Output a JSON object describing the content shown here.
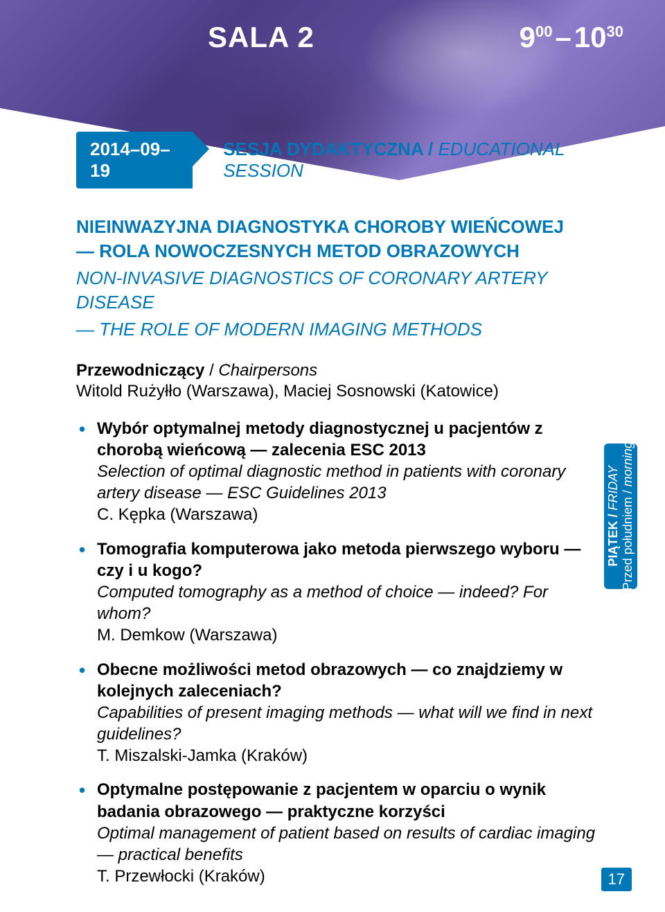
{
  "header": {
    "room": "SALA 2",
    "time_start_h": "9",
    "time_start_m": "00",
    "time_end_h": "10",
    "time_end_m": "30"
  },
  "date_badge": "2014–09–19",
  "session_type_pl": "SESJA DYDAKTYCZNA",
  "session_type_en": "EDUCATIONAL SESSION",
  "title_pl_line1": "NIEINWAZYJNA DIAGNOSTYKA CHOROBY WIEŃCOWEJ",
  "title_pl_line2": "— ROLA NOWOCZESNYCH METOD OBRAZOWYCH",
  "title_en_line1": "NON-INVASIVE DIAGNOSTICS OF CORONARY ARTERY DISEASE",
  "title_en_line2": "— THE ROLE OF MODERN IMAGING METHODS",
  "chair_label_pl": "Przewodniczący",
  "chair_label_en": "Chairpersons",
  "chair_names": "Witold Rużyłło (Warszawa), Maciej Sosnowski (Katowice)",
  "items": [
    {
      "pl": "Wybór optymalnej metody diagnostycznej u pacjentów z chorobą wieńcową — zalecenia ESC 2013",
      "en": "Selection of optimal diagnostic method in patients with coronary artery disease — ESC Guidelines 2013",
      "auth": "C. Kępka (Warszawa)"
    },
    {
      "pl": "Tomografia komputerowa jako metoda pierwszego wyboru — czy i u kogo?",
      "en": "Computed tomography as a method of choice — indeed? For whom?",
      "auth": "M. Demkow (Warszawa)"
    },
    {
      "pl": "Obecne możliwości metod obrazowych — co znajdziemy w kolejnych zaleceniach?",
      "en": "Capabilities of present imaging methods — what will we find in next guidelines?",
      "auth": "T. Miszalski-Jamka (Kraków)"
    },
    {
      "pl": "Optymalne postępowanie z pacjentem w oparciu o wynik badania obrazowego — praktyczne korzyści",
      "en": "Optimal management of patient based on results of cardiac imaging — practical benefits",
      "auth": "T. Przewłocki (Kraków)"
    }
  ],
  "side_tab": {
    "day_pl": "PIĄTEK",
    "day_en": "FRIDAY",
    "part_pl": "Przed południem",
    "part_en": "morning"
  },
  "page_number": "17",
  "colors": {
    "accent": "#0078b8",
    "bg_purple": "#5a4a95"
  }
}
